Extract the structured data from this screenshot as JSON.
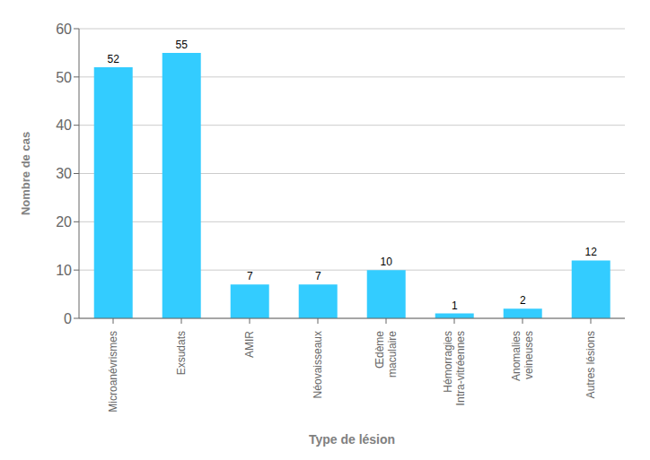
{
  "chart_data": {
    "type": "bar",
    "categories": [
      "Microanévrismes",
      "Exsudats",
      "AMIR",
      "Néovaisseaux",
      "Œdème\nmaculaire",
      "Hémorragies\nIntra-vitréennes",
      "Anomalies\nveineuses",
      "Autres lésions"
    ],
    "values": [
      52,
      55,
      7,
      7,
      10,
      1,
      2,
      12
    ],
    "color": "#33CCFF",
    "xlabel": "Type de lésion",
    "ylabel": "Nombre de cas",
    "ylim": [
      0,
      60
    ],
    "yticks": [
      0,
      10,
      20,
      30,
      40,
      50,
      60
    ],
    "grid": true,
    "data_labels": true
  }
}
